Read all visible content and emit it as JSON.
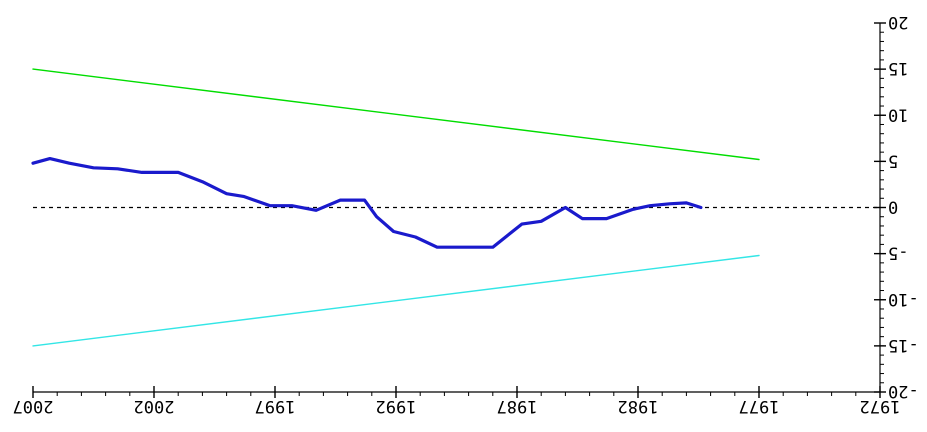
{
  "chart_data": {
    "type": "line",
    "title": "",
    "xlabel": "",
    "ylabel": "",
    "x_axis": {
      "reversed": true,
      "xlim": [
        2007,
        1972
      ],
      "tick_labels": [
        "2007",
        "2002",
        "1997",
        "1992",
        "1987",
        "1982",
        "1977",
        "1972"
      ],
      "tick_values": [
        2007,
        2002,
        1997,
        1992,
        1987,
        1982,
        1977,
        1972
      ],
      "minor_step": 1
    },
    "y_axis": {
      "position": "right",
      "ylim": [
        -20,
        20
      ],
      "tick_labels": [
        "20",
        "15",
        "10",
        "5",
        "0",
        "-5",
        "-10",
        "-15",
        "-20"
      ],
      "tick_values": [
        20,
        15,
        10,
        5,
        0,
        -5,
        -10,
        -15,
        -20
      ],
      "minor_step": 1
    },
    "zero_line": {
      "y": 0,
      "style": "dashed",
      "color": "#000000"
    },
    "grid": false,
    "legend": "none",
    "series": [
      {
        "color": "#00dd00",
        "points": [
          [
            2007,
            15
          ],
          [
            1977,
            5.2
          ]
        ]
      },
      {
        "color": "#1a1acc",
        "thick": true,
        "points": [
          [
            2007,
            4.8
          ],
          [
            2006.3,
            5.3
          ],
          [
            2005.5,
            4.8
          ],
          [
            2004.5,
            4.3
          ],
          [
            2003.5,
            4.2
          ],
          [
            2002.5,
            3.8
          ],
          [
            2001,
            3.8
          ],
          [
            2000,
            2.8
          ],
          [
            1999,
            1.5
          ],
          [
            1998.3,
            1.2
          ],
          [
            1997.2,
            0.2
          ],
          [
            1996.3,
            0.2
          ],
          [
            1995.3,
            -0.3
          ],
          [
            1994.3,
            0.8
          ],
          [
            1993.3,
            0.8
          ],
          [
            1992.8,
            -1.0
          ],
          [
            1992.1,
            -2.6
          ],
          [
            1991.2,
            -3.2
          ],
          [
            1990.3,
            -4.3
          ],
          [
            1989.5,
            -4.3
          ],
          [
            1988,
            -4.3
          ],
          [
            1986.8,
            -1.8
          ],
          [
            1986,
            -1.5
          ],
          [
            1985,
            0.0
          ],
          [
            1984.3,
            -1.2
          ],
          [
            1983.3,
            -1.2
          ],
          [
            1982.2,
            -0.2
          ],
          [
            1981.5,
            0.2
          ],
          [
            1980.7,
            0.4
          ],
          [
            1980,
            0.5
          ],
          [
            1979.4,
            0.0
          ]
        ]
      },
      {
        "color": "#33e6e6",
        "points": [
          [
            2007,
            -15
          ],
          [
            1977,
            -5.2
          ]
        ]
      }
    ]
  }
}
